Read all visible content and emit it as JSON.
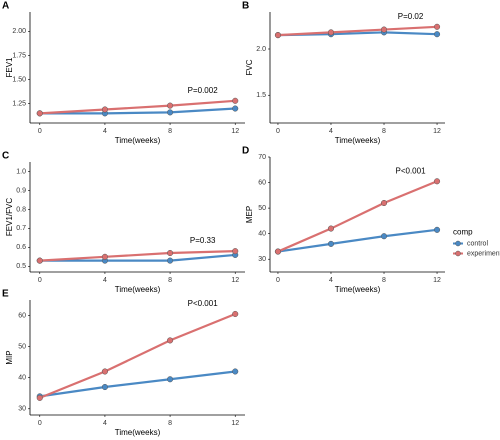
{
  "chart_data": [
    {
      "type": "line",
      "label": "A",
      "y_label": "FEV1",
      "x_label": "Time(weeks)",
      "x": [
        0,
        4,
        8,
        12
      ],
      "xlim": [
        -0.6,
        12.6
      ],
      "xticks": [
        0,
        4,
        8,
        12
      ],
      "ylim": [
        1.05,
        2.2
      ],
      "yticks": [
        1.25,
        {
          "value": 1.5,
          "label": "1.50"
        },
        {
          "value": 1.75,
          "label": "1.75"
        },
        {
          "value": 2.0,
          "label": "2.00"
        }
      ],
      "annotation": "P=0.002",
      "series": [
        {
          "name": "control",
          "color": "#4a89c4",
          "values": [
            1.15,
            1.15,
            1.16,
            1.2
          ]
        },
        {
          "name": "experiment",
          "color": "#d97070",
          "values": [
            1.15,
            1.19,
            1.23,
            1.28
          ]
        }
      ]
    },
    {
      "type": "line",
      "label": "B",
      "y_label": "FVC",
      "x_label": "Time(weeks)",
      "x": [
        0,
        4,
        8,
        12
      ],
      "xlim": [
        -0.6,
        12.6
      ],
      "xticks": [
        0,
        4,
        8,
        12
      ],
      "ylim": [
        1.2,
        2.4
      ],
      "yticks": [
        1.5,
        {
          "value": 2.0,
          "label": "2.0"
        }
      ],
      "annotation": "P=0.02",
      "series": [
        {
          "name": "control",
          "color": "#4a89c4",
          "values": [
            2.15,
            2.16,
            2.18,
            2.16
          ]
        },
        {
          "name": "experiment",
          "color": "#d97070",
          "values": [
            2.15,
            2.18,
            2.21,
            2.24
          ]
        }
      ]
    },
    {
      "type": "line",
      "label": "C",
      "y_label": "FEV1/FVC",
      "x_label": "Time(weeks)",
      "x": [
        0,
        4,
        8,
        12
      ],
      "xlim": [
        -0.6,
        12.6
      ],
      "xticks": [
        0,
        4,
        8,
        12
      ],
      "ylim": [
        0.47,
        1.05
      ],
      "yticks": [
        0.5,
        0.6,
        0.7,
        0.8,
        0.9,
        {
          "value": 1.0,
          "label": "1.0"
        }
      ],
      "annotation": "P=0.33",
      "series": [
        {
          "name": "control",
          "color": "#4a89c4",
          "values": [
            0.53,
            0.53,
            0.53,
            0.56
          ]
        },
        {
          "name": "experiment",
          "color": "#d97070",
          "values": [
            0.53,
            0.55,
            0.57,
            0.58
          ]
        }
      ]
    },
    {
      "type": "line",
      "label": "D",
      "y_label": "MEP",
      "x_label": "Time(weeks)",
      "x": [
        0,
        4,
        8,
        12
      ],
      "xlim": [
        -0.6,
        12.6
      ],
      "xticks": [
        0,
        4,
        8,
        12
      ],
      "ylim": [
        25,
        70
      ],
      "yticks": [
        30,
        40,
        50,
        60,
        70
      ],
      "annotation": "P<0.001",
      "legend_title": "comp",
      "series": [
        {
          "name": "control",
          "color": "#4a89c4",
          "values": [
            33,
            36,
            39,
            41.5
          ]
        },
        {
          "name": "experiment",
          "color": "#d97070",
          "values": [
            33,
            42,
            52,
            60.5
          ]
        }
      ]
    },
    {
      "type": "line",
      "label": "E",
      "y_label": "MIP",
      "x_label": "Time(weeks)",
      "x": [
        0,
        4,
        8,
        12
      ],
      "xlim": [
        -0.6,
        12.6
      ],
      "xticks": [
        0,
        4,
        8,
        12
      ],
      "ylim": [
        28,
        65
      ],
      "yticks": [
        30,
        40,
        50,
        60
      ],
      "annotation": "P<0.001",
      "series": [
        {
          "name": "control",
          "color": "#4a89c4",
          "values": [
            34,
            37,
            39.5,
            42
          ]
        },
        {
          "name": "experiment",
          "color": "#d97070",
          "values": [
            33.5,
            42,
            52,
            60.5
          ]
        }
      ]
    }
  ]
}
